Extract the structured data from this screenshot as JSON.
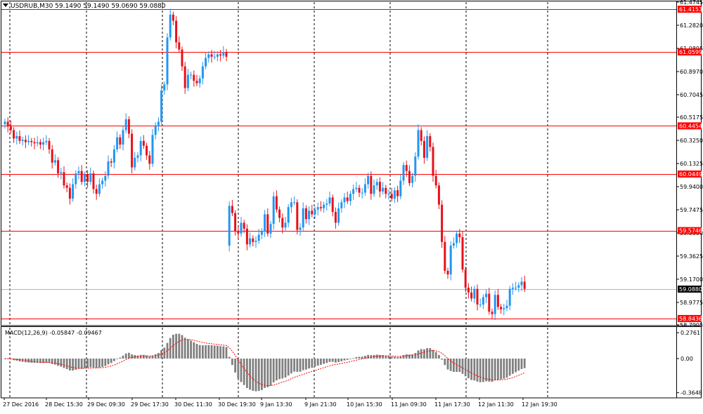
{
  "window": {
    "symbol_title": "USDRUB,M30  59.1490 59.1490 59.0690 59.0880",
    "current_price_label": "59.0880"
  },
  "price_axis": {
    "ticks": [
      "61.4745",
      "61.2820",
      "61.0895",
      "60.8970",
      "60.7045",
      "60.5175",
      "60.3250",
      "60.1325",
      "59.9400",
      "59.7475",
      "59.5550",
      "59.3625",
      "59.1700",
      "58.9775",
      "58.7905"
    ],
    "range": [
      58.7905,
      61.4745
    ]
  },
  "horizontal_levels": {
    "color": "#ff0000",
    "values": [
      61.4153,
      61.0599,
      60.4454,
      60.0449,
      59.5746,
      58.8436
    ],
    "labels": [
      "61.4153",
      "61.0599",
      "60.4454",
      "60.0449",
      "59.5746",
      "58.8436"
    ]
  },
  "time_axis": {
    "labels": [
      "27 Dec 2016",
      "28 Dec 15:30",
      "29 Dec 09:30",
      "29 Dec 17:30",
      "30 Dec 11:30",
      "30 Dec 19:30",
      "9 Jan 13:30",
      "9 Jan 21:30",
      "10 Jan 15:30",
      "11 Jan 09:30",
      "11 Jan 17:30",
      "12 Jan 11:30",
      "12 Jan 19:30"
    ]
  },
  "macd": {
    "title": "MACD(12,26,9) -0.05847 -0.09467",
    "axis_labels": [
      "0.2761",
      "0.00",
      "-0.3648"
    ],
    "range": [
      -0.42,
      0.33
    ]
  },
  "colors": {
    "bull": "#2196f3",
    "bear": "#e8101a",
    "level": "#ff0000",
    "grid": "#000000",
    "macd_hist": "#808080",
    "signal": "#ff0000"
  },
  "chart_data": {
    "type": "candlestick",
    "title": "USDRUB,M30",
    "open": [
      60.46,
      60.48,
      60.44,
      60.41,
      60.34,
      60.36,
      60.32,
      60.33,
      60.31,
      60.32,
      60.31,
      60.3,
      60.31,
      60.29,
      60.31,
      60.32,
      60.25,
      60.14,
      60.16,
      60.05,
      60.06,
      59.95,
      59.93,
      59.84,
      59.96,
      60.05,
      60.07,
      59.98,
      60.04,
      59.98,
      60.05,
      59.92,
      59.88,
      59.96,
      59.99,
      60.03,
      60.15,
      60.14,
      60.25,
      60.35,
      60.29,
      60.41,
      60.5,
      60.38,
      60.1,
      60.18,
      60.2,
      60.32,
      60.28,
      60.2,
      60.13,
      60.37,
      60.45,
      60.48,
      60.74,
      60.79,
      61.18,
      61.37,
      61.32,
      61.14,
      61.08,
      60.94,
      60.76,
      60.87,
      60.87,
      60.82,
      60.8,
      60.84,
      60.94,
      61.01,
      61.04,
      61.02,
      61.02,
      61.04,
      61.03,
      61.06,
      59.45,
      59.78,
      59.72,
      59.57,
      59.55,
      59.64,
      59.59,
      59.46,
      59.51,
      59.48,
      59.49,
      59.54,
      59.57,
      59.71,
      59.55,
      59.63,
      59.86,
      59.75,
      59.68,
      59.6,
      59.64,
      59.77,
      59.81,
      59.81,
      59.58,
      59.6,
      59.76,
      59.67,
      59.74,
      59.71,
      59.75,
      59.77,
      59.76,
      59.79,
      59.8,
      59.85,
      59.73,
      59.64,
      59.76,
      59.81,
      59.85,
      59.82,
      59.88,
      59.92,
      59.93,
      59.89,
      59.89,
      59.96,
      60.03,
      59.88,
      59.95,
      59.98,
      59.9,
      59.93,
      59.88,
      59.88,
      59.84,
      59.91,
      59.86,
      59.99,
      60.12,
      60.07,
      59.97,
      60.03,
      60.19,
      60.41,
      60.32,
      60.18,
      60.36,
      60.27,
      60.03,
      59.95,
      59.79,
      59.48,
      59.24,
      59.21,
      59.45,
      59.47,
      59.55,
      59.52,
      59.25,
      59.1,
      59.06,
      59.01,
      59.09,
      58.96,
      58.96,
      59.02,
      59.05,
      58.9,
      58.88,
      59.04,
      58.94,
      58.92,
      58.93,
      58.95,
      59.09,
      59.1,
      59.1,
      59.12,
      59.15
    ],
    "close": [
      60.48,
      60.44,
      60.41,
      60.34,
      60.36,
      60.32,
      60.33,
      60.31,
      60.32,
      60.31,
      60.3,
      60.31,
      60.29,
      60.31,
      60.32,
      60.25,
      60.14,
      60.16,
      60.05,
      60.06,
      59.95,
      59.93,
      59.84,
      59.96,
      60.05,
      60.07,
      59.98,
      60.04,
      59.98,
      60.05,
      59.92,
      59.88,
      59.96,
      59.99,
      60.03,
      60.15,
      60.14,
      60.25,
      60.35,
      60.29,
      60.41,
      60.5,
      60.38,
      60.1,
      60.18,
      60.2,
      60.32,
      60.28,
      60.2,
      60.13,
      60.37,
      60.45,
      60.48,
      60.74,
      60.79,
      61.18,
      61.37,
      61.32,
      61.14,
      61.08,
      60.94,
      60.76,
      60.87,
      60.87,
      60.82,
      60.8,
      60.84,
      60.94,
      61.01,
      61.04,
      61.02,
      61.02,
      61.04,
      61.03,
      61.06,
      61.02,
      59.78,
      59.72,
      59.57,
      59.55,
      59.64,
      59.59,
      59.46,
      59.51,
      59.48,
      59.49,
      59.54,
      59.57,
      59.71,
      59.55,
      59.63,
      59.86,
      59.75,
      59.68,
      59.6,
      59.64,
      59.77,
      59.81,
      59.81,
      59.58,
      59.6,
      59.76,
      59.67,
      59.74,
      59.71,
      59.75,
      59.77,
      59.76,
      59.79,
      59.8,
      59.85,
      59.73,
      59.64,
      59.76,
      59.81,
      59.85,
      59.82,
      59.88,
      59.92,
      59.93,
      59.89,
      59.89,
      59.96,
      60.03,
      59.88,
      59.95,
      59.98,
      59.9,
      59.93,
      59.88,
      59.88,
      59.84,
      59.91,
      59.86,
      59.99,
      60.12,
      60.07,
      59.97,
      60.03,
      60.19,
      60.41,
      60.32,
      60.18,
      60.36,
      60.27,
      60.03,
      59.95,
      59.79,
      59.48,
      59.24,
      59.21,
      59.45,
      59.47,
      59.55,
      59.52,
      59.25,
      59.1,
      59.06,
      59.01,
      59.09,
      58.96,
      58.96,
      59.02,
      59.05,
      58.9,
      58.88,
      59.04,
      58.94,
      58.92,
      58.93,
      58.95,
      59.09,
      59.1,
      59.1,
      59.12,
      59.15,
      59.09
    ]
  }
}
